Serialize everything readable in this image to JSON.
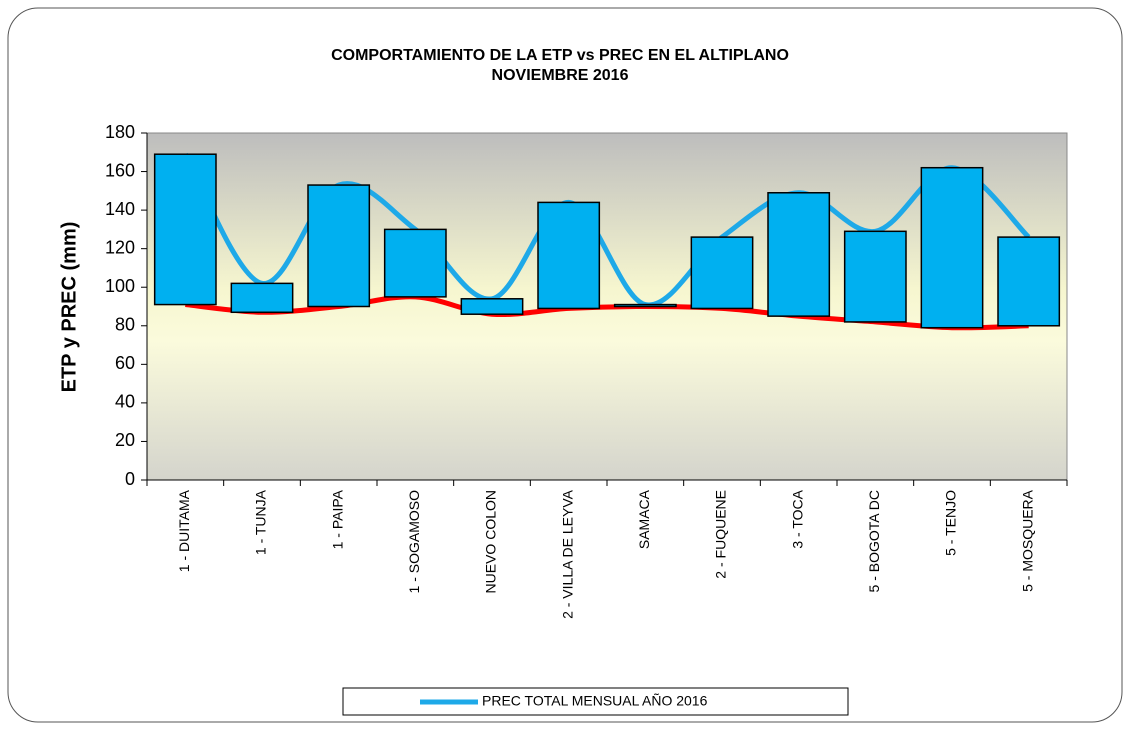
{
  "chart_data": {
    "type": "line",
    "title": "COMPORTAMIENTO DE LA ETP vs PREC EN EL ALTIPLANO",
    "subtitle": "NOVIEMBRE  2016",
    "y_label": "ETP y PREC (mm)",
    "categories": [
      "1 - DUITAMA",
      "1 - TUNJA",
      "1 - PAIPA",
      "1 - SOGAMOSO",
      "NUEVO COLON",
      "2 - VILLA DE LEYVA",
      "SAMACA",
      "2 - FUQUENE",
      "3 - TOCA",
      "5 - BOGOTA DC",
      "5 - TENJO",
      "5 - MOSQUERA"
    ],
    "series": [
      {
        "name": "PREC TOTAL MENSUAL  AÑO 2016",
        "color": "#1ea9e8",
        "values": [
          169,
          102,
          153,
          130,
          94,
          144,
          91,
          126,
          149,
          129,
          162,
          126
        ]
      },
      {
        "color": "#ff0000",
        "values": [
          91,
          87,
          90,
          95,
          86,
          89,
          90,
          89,
          85,
          82,
          79,
          80
        ]
      }
    ],
    "bar_color": "#00b0f0",
    "ylim": [
      0,
      180
    ],
    "yticks": [
      0,
      20,
      40,
      60,
      80,
      100,
      120,
      140,
      160,
      180
    ],
    "grid": false
  }
}
